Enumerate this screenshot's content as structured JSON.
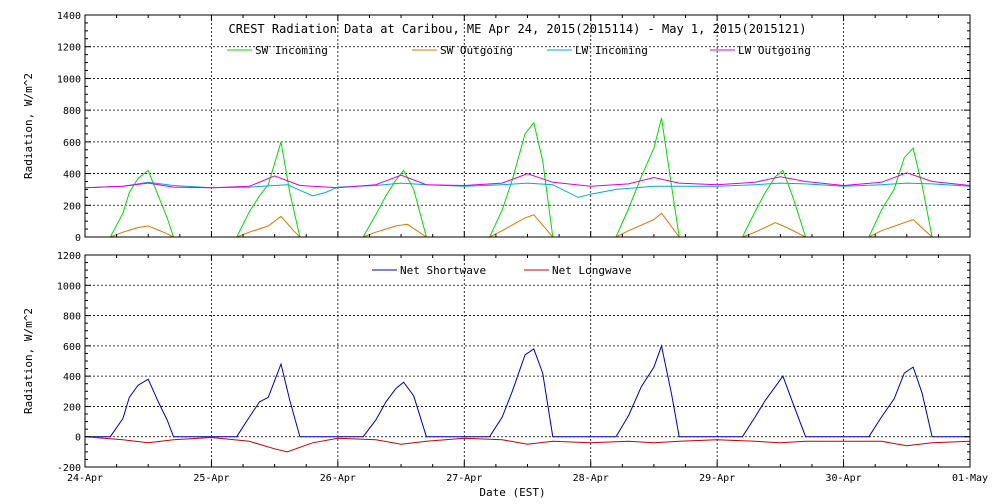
{
  "chart_data": [
    {
      "type": "line",
      "title": "CREST Radiation Data at Caribou, ME   Apr 24, 2015(2015114) - May  1, 2015(2015121)",
      "ylabel": "Radiation, W/m^2",
      "xlabel": "",
      "ylim": [
        0,
        1400
      ],
      "yticks": [
        0,
        200,
        400,
        600,
        800,
        1000,
        1200,
        1400
      ],
      "xlim": [
        0,
        7
      ],
      "xtick_labels": [
        "24-Apr",
        "25-Apr",
        "26-Apr",
        "27-Apr",
        "28-Apr",
        "29-Apr",
        "30-Apr",
        "01-May"
      ],
      "grid": true,
      "legend_position": "top",
      "series": [
        {
          "name": "SW Incoming",
          "color": "#00dd00",
          "x": [
            0.0,
            0.1,
            0.2,
            0.3,
            0.35,
            0.42,
            0.5,
            0.58,
            0.65,
            0.7,
            0.8,
            1.0,
            1.1,
            1.2,
            1.3,
            1.38,
            1.45,
            1.55,
            1.62,
            1.7,
            1.8,
            2.0,
            2.2,
            2.3,
            2.38,
            2.46,
            2.52,
            2.6,
            2.7,
            2.8,
            3.0,
            3.2,
            3.3,
            3.38,
            3.48,
            3.55,
            3.62,
            3.7,
            3.8,
            4.0,
            4.2,
            4.3,
            4.4,
            4.5,
            4.56,
            4.64,
            4.7,
            4.8,
            5.0,
            5.2,
            5.3,
            5.38,
            5.46,
            5.52,
            5.6,
            5.7,
            5.8,
            6.0,
            6.2,
            6.3,
            6.4,
            6.48,
            6.55,
            6.62,
            6.7,
            6.8,
            7.0
          ],
          "y": [
            0,
            0,
            0,
            150,
            280,
            370,
            420,
            260,
            120,
            0,
            0,
            0,
            0,
            0,
            160,
            260,
            330,
            600,
            280,
            0,
            0,
            0,
            0,
            140,
            260,
            360,
            420,
            300,
            0,
            0,
            0,
            0,
            170,
            360,
            650,
            720,
            480,
            0,
            0,
            0,
            0,
            180,
            380,
            560,
            750,
            320,
            0,
            0,
            0,
            0,
            160,
            280,
            380,
            420,
            250,
            0,
            0,
            0,
            0,
            170,
            300,
            500,
            560,
            330,
            0,
            0,
            0
          ]
        },
        {
          "name": "SW Outgoing",
          "color": "#dd7700",
          "x": [
            0.0,
            0.2,
            0.3,
            0.42,
            0.5,
            0.65,
            0.7,
            1.0,
            1.2,
            1.3,
            1.45,
            1.55,
            1.65,
            1.7,
            2.0,
            2.2,
            2.3,
            2.46,
            2.55,
            2.7,
            3.0,
            3.2,
            3.3,
            3.48,
            3.55,
            3.7,
            4.0,
            4.2,
            4.3,
            4.5,
            4.56,
            4.7,
            5.0,
            5.2,
            5.3,
            5.46,
            5.55,
            5.7,
            6.0,
            6.2,
            6.3,
            6.48,
            6.55,
            6.7,
            7.0
          ],
          "y": [
            0,
            0,
            30,
            60,
            70,
            20,
            0,
            0,
            0,
            30,
            70,
            130,
            40,
            0,
            0,
            0,
            30,
            70,
            80,
            0,
            0,
            0,
            40,
            120,
            140,
            0,
            0,
            0,
            40,
            110,
            150,
            0,
            0,
            0,
            30,
            90,
            60,
            0,
            0,
            0,
            40,
            90,
            110,
            0,
            0
          ]
        },
        {
          "name": "LW Incoming",
          "color": "#00aadd",
          "x": [
            0.0,
            0.3,
            0.5,
            0.7,
            1.0,
            1.3,
            1.6,
            1.8,
            1.9,
            2.0,
            2.3,
            2.5,
            2.7,
            3.0,
            3.3,
            3.5,
            3.7,
            3.9,
            4.0,
            4.2,
            4.5,
            4.7,
            5.0,
            5.3,
            5.5,
            5.7,
            6.0,
            6.3,
            6.5,
            6.7,
            7.0
          ],
          "y": [
            310,
            320,
            345,
            325,
            310,
            315,
            330,
            260,
            280,
            315,
            325,
            340,
            330,
            320,
            330,
            340,
            330,
            250,
            270,
            300,
            320,
            320,
            320,
            330,
            340,
            335,
            320,
            330,
            340,
            335,
            320
          ]
        },
        {
          "name": "LW Outgoing",
          "color": "#dd00dd",
          "x": [
            0.0,
            0.3,
            0.5,
            0.7,
            1.0,
            1.3,
            1.5,
            1.7,
            2.0,
            2.3,
            2.5,
            2.7,
            3.0,
            3.3,
            3.5,
            3.7,
            4.0,
            4.3,
            4.5,
            4.7,
            5.0,
            5.3,
            5.5,
            5.7,
            6.0,
            6.3,
            6.5,
            6.7,
            7.0
          ],
          "y": [
            310,
            320,
            340,
            315,
            310,
            320,
            385,
            325,
            310,
            330,
            390,
            330,
            325,
            340,
            400,
            345,
            320,
            335,
            375,
            340,
            330,
            345,
            380,
            350,
            325,
            345,
            405,
            350,
            325
          ]
        }
      ]
    },
    {
      "type": "line",
      "title": "",
      "ylabel": "Radiation, W/m^2",
      "xlabel": "Date (EST)",
      "ylim": [
        -200,
        1200
      ],
      "yticks": [
        -200,
        0,
        200,
        400,
        600,
        800,
        1000,
        1200
      ],
      "xlim": [
        0,
        7
      ],
      "xtick_labels": [
        "24-Apr",
        "25-Apr",
        "26-Apr",
        "27-Apr",
        "28-Apr",
        "29-Apr",
        "30-Apr",
        "01-May"
      ],
      "grid": true,
      "legend_position": "top",
      "series": [
        {
          "name": "Net Shortwave",
          "color": "#0000bb",
          "x": [
            0.0,
            0.2,
            0.3,
            0.35,
            0.42,
            0.5,
            0.58,
            0.65,
            0.7,
            1.0,
            1.2,
            1.3,
            1.38,
            1.45,
            1.55,
            1.62,
            1.7,
            2.0,
            2.2,
            2.3,
            2.38,
            2.46,
            2.52,
            2.6,
            2.7,
            3.0,
            3.2,
            3.3,
            3.38,
            3.48,
            3.55,
            3.62,
            3.7,
            4.0,
            4.2,
            4.3,
            4.4,
            4.5,
            4.56,
            4.64,
            4.7,
            5.0,
            5.2,
            5.3,
            5.38,
            5.46,
            5.52,
            5.6,
            5.7,
            6.0,
            6.2,
            6.3,
            6.4,
            6.48,
            6.55,
            6.62,
            6.7,
            7.0
          ],
          "y": [
            0,
            0,
            120,
            260,
            340,
            380,
            230,
            110,
            0,
            0,
            0,
            130,
            230,
            260,
            480,
            240,
            0,
            0,
            0,
            110,
            230,
            320,
            360,
            270,
            0,
            0,
            0,
            130,
            300,
            540,
            580,
            420,
            0,
            0,
            0,
            140,
            330,
            460,
            600,
            280,
            0,
            0,
            0,
            130,
            240,
            330,
            400,
            220,
            0,
            0,
            0,
            130,
            250,
            420,
            460,
            290,
            0,
            0
          ]
        },
        {
          "name": "Net Longwave",
          "color": "#cc0000",
          "x": [
            0.0,
            0.3,
            0.5,
            0.7,
            1.0,
            1.3,
            1.5,
            1.6,
            1.8,
            2.0,
            2.3,
            2.5,
            2.7,
            3.0,
            3.3,
            3.5,
            3.7,
            4.0,
            4.3,
            4.5,
            4.7,
            5.0,
            5.3,
            5.5,
            5.7,
            6.0,
            6.3,
            6.5,
            6.7,
            7.0
          ],
          "y": [
            0,
            -20,
            -40,
            -20,
            -5,
            -30,
            -80,
            -100,
            -40,
            -10,
            -20,
            -50,
            -30,
            -10,
            -20,
            -50,
            -30,
            -40,
            -30,
            -40,
            -30,
            -20,
            -30,
            -40,
            -30,
            -30,
            -30,
            -60,
            -40,
            -30
          ]
        }
      ]
    }
  ]
}
